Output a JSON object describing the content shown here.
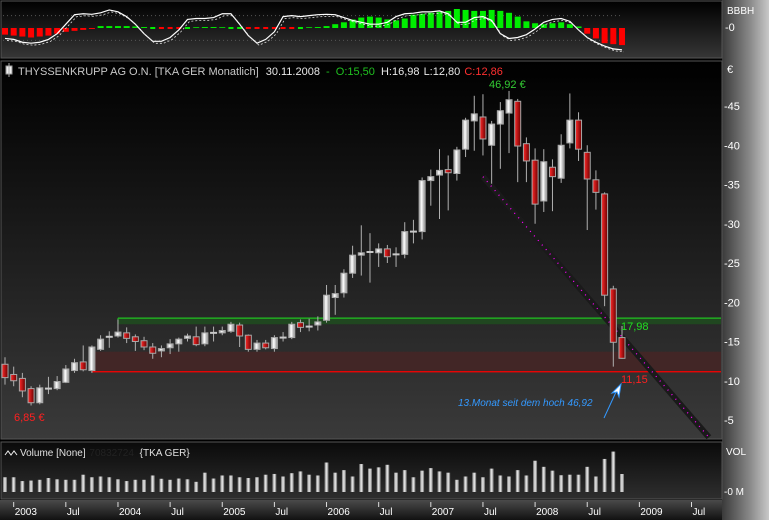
{
  "header": {
    "icon": "candlestick-icon",
    "title": "THYSSENKRUPP AG O.N. [TKA GER  Monatlich]",
    "date": "30.11.2008",
    "sep": "-",
    "open": "O:15,50",
    "high": "H:16,98",
    "low": "L:12,80",
    "close": "C:12,86"
  },
  "indicator": {
    "label": "BBBH",
    "zero_label": "-0"
  },
  "volume_panel": {
    "icon": "line-chart-icon",
    "title": "Volume [None]",
    "value": "70832724",
    "symbol": "{TKA GER}",
    "axis_label": "VOL",
    "zero_label": "-0 M"
  },
  "colors": {
    "up": "#e0e0e0",
    "down": "#d00000",
    "support": "#20c020",
    "resistance": "#ff0000",
    "trend": "#ff00ff",
    "annotation": "#3399ff"
  },
  "chart_data": [
    {
      "type": "candlestick",
      "title": "THYSSENKRUPP AG O.N. [TKA GER  Monatlich]",
      "ylabel": "€",
      "ylim": [
        2,
        49
      ],
      "yticks": [
        5,
        10,
        15,
        20,
        25,
        30,
        35,
        40,
        45
      ],
      "ytick_labels": [
        "-5",
        "-10",
        "-15",
        "-20",
        "-25",
        "-30",
        "-35",
        "-40",
        "-45"
      ],
      "xticks": [
        {
          "month": "2003-01",
          "label": "2003"
        },
        {
          "month": "2003-07",
          "label": "Jul"
        },
        {
          "month": "2004-01",
          "label": "2004"
        },
        {
          "month": "2004-07",
          "label": "Jul"
        },
        {
          "month": "2005-01",
          "label": "2005"
        },
        {
          "month": "2005-07",
          "label": "Jul"
        },
        {
          "month": "2006-01",
          "label": "2006"
        },
        {
          "month": "2006-07",
          "label": "Jul"
        },
        {
          "month": "2007-01",
          "label": "2007"
        },
        {
          "month": "2007-07",
          "label": "Jul"
        },
        {
          "month": "2008-01",
          "label": "2008"
        },
        {
          "month": "2008-07",
          "label": "Jul"
        },
        {
          "month": "2009-01",
          "label": "2009"
        },
        {
          "month": "2009-07",
          "label": "Jul"
        }
      ],
      "fields": [
        "month",
        "open",
        "high",
        "low",
        "close"
      ],
      "candles": [
        [
          "2002-12",
          12.1,
          13.0,
          9.5,
          10.4
        ],
        [
          "2003-01",
          10.8,
          11.8,
          9.3,
          10.0
        ],
        [
          "2003-02",
          10.3,
          11.0,
          7.9,
          8.7
        ],
        [
          "2003-03",
          9.0,
          9.3,
          6.85,
          7.2
        ],
        [
          "2003-04",
          7.2,
          9.5,
          7.0,
          9.1
        ],
        [
          "2003-05",
          9.0,
          10.5,
          8.3,
          9.0
        ],
        [
          "2003-06",
          9.0,
          10.6,
          8.8,
          9.9
        ],
        [
          "2003-07",
          9.8,
          12.0,
          9.7,
          11.5
        ],
        [
          "2003-08",
          11.3,
          12.8,
          11.0,
          12.3
        ],
        [
          "2003-09",
          12.4,
          14.5,
          11.2,
          11.4
        ],
        [
          "2003-10",
          11.3,
          14.5,
          11.0,
          14.3
        ],
        [
          "2003-11",
          14.0,
          15.8,
          13.8,
          15.3
        ],
        [
          "2003-12",
          15.5,
          16.3,
          14.2,
          15.6
        ],
        [
          "2004-01",
          15.7,
          17.8,
          15.5,
          16.2
        ],
        [
          "2004-02",
          16.1,
          16.8,
          14.8,
          15.4
        ],
        [
          "2004-03",
          15.6,
          15.9,
          13.8,
          15.0
        ],
        [
          "2004-04",
          15.1,
          15.6,
          13.9,
          14.3
        ],
        [
          "2004-05",
          14.3,
          14.8,
          12.8,
          13.5
        ],
        [
          "2004-06",
          13.8,
          14.5,
          13.0,
          14.1
        ],
        [
          "2004-07",
          14.2,
          15.3,
          13.4,
          14.7
        ],
        [
          "2004-08",
          14.7,
          15.5,
          13.7,
          15.3
        ],
        [
          "2004-09",
          15.4,
          16.0,
          15.0,
          15.7
        ],
        [
          "2004-10",
          15.6,
          16.9,
          14.4,
          14.6
        ],
        [
          "2004-11",
          14.7,
          16.9,
          14.4,
          16.1
        ],
        [
          "2004-12",
          16.0,
          16.9,
          15.0,
          16.1
        ],
        [
          "2005-01",
          16.1,
          16.9,
          15.8,
          16.4
        ],
        [
          "2005-02",
          16.3,
          17.5,
          16.1,
          17.2
        ],
        [
          "2005-03",
          17.1,
          17.4,
          14.3,
          15.7
        ],
        [
          "2005-04",
          15.8,
          15.9,
          13.7,
          14.0
        ],
        [
          "2005-05",
          14.0,
          15.2,
          13.7,
          14.8
        ],
        [
          "2005-06",
          14.8,
          15.2,
          14.0,
          14.2
        ],
        [
          "2005-07",
          14.1,
          15.8,
          13.7,
          15.5
        ],
        [
          "2005-08",
          15.5,
          16.2,
          15.0,
          15.5
        ],
        [
          "2005-09",
          15.5,
          17.5,
          15.3,
          17.2
        ],
        [
          "2005-10",
          17.4,
          17.8,
          16.2,
          16.8
        ],
        [
          "2005-11",
          16.9,
          17.9,
          16.3,
          16.9
        ],
        [
          "2005-12",
          17.1,
          18.2,
          16.4,
          17.5
        ],
        [
          "2006-01",
          17.7,
          22.2,
          17.4,
          20.9
        ],
        [
          "2006-02",
          20.6,
          22.2,
          18.4,
          21.1
        ],
        [
          "2006-03",
          21.2,
          24.2,
          20.6,
          23.7
        ],
        [
          "2006-04",
          23.7,
          27.2,
          23.1,
          26.0
        ],
        [
          "2006-05",
          26.0,
          29.8,
          23.4,
          26.3
        ],
        [
          "2006-06",
          26.4,
          28.8,
          22.5,
          26.4
        ],
        [
          "2006-07",
          26.3,
          27.5,
          24.5,
          26.8
        ],
        [
          "2006-08",
          26.8,
          27.3,
          25.0,
          25.8
        ],
        [
          "2006-09",
          26.1,
          27.0,
          24.5,
          26.1
        ],
        [
          "2006-10",
          26.1,
          30.2,
          25.6,
          29.0
        ],
        [
          "2006-11",
          29.0,
          30.5,
          27.5,
          29.0
        ],
        [
          "2006-12",
          29.0,
          35.9,
          28.0,
          35.5
        ],
        [
          "2007-01",
          35.5,
          36.9,
          32.3,
          36.0
        ],
        [
          "2007-02",
          36.2,
          39.5,
          30.6,
          36.8
        ],
        [
          "2007-03",
          36.9,
          38.7,
          31.7,
          36.5
        ],
        [
          "2007-04",
          36.4,
          39.8,
          35.5,
          39.4
        ],
        [
          "2007-05",
          39.5,
          43.5,
          38.5,
          43.2
        ],
        [
          "2007-06",
          43.1,
          46.3,
          39.3,
          44.0
        ],
        [
          "2007-07",
          43.6,
          46.5,
          38.7,
          40.8
        ],
        [
          "2007-08",
          40.0,
          43.1,
          35.1,
          42.7
        ],
        [
          "2007-09",
          42.7,
          45.5,
          37.0,
          44.4
        ],
        [
          "2007-10",
          44.1,
          46.92,
          39.0,
          45.8
        ],
        [
          "2007-11",
          45.6,
          45.9,
          35.3,
          39.9
        ],
        [
          "2007-12",
          40.2,
          41.0,
          35.3,
          38.0
        ],
        [
          "2008-01",
          38.1,
          39.6,
          30.0,
          32.5
        ],
        [
          "2008-02",
          32.9,
          39.5,
          31.5,
          37.9
        ],
        [
          "2008-03",
          37.2,
          38.2,
          31.6,
          36.0
        ],
        [
          "2008-04",
          35.8,
          41.4,
          35.2,
          40.0
        ],
        [
          "2008-05",
          40.3,
          46.6,
          39.6,
          43.2
        ],
        [
          "2008-06",
          43.2,
          44.2,
          38.0,
          39.5
        ],
        [
          "2008-07",
          39.1,
          40.0,
          29.2,
          35.7
        ],
        [
          "2008-08",
          35.6,
          36.8,
          31.8,
          34.0
        ],
        [
          "2008-09",
          33.8,
          34.0,
          19.5,
          20.9
        ],
        [
          "2008-10",
          21.7,
          22.1,
          11.8,
          14.9
        ],
        [
          "2008-11",
          15.5,
          16.98,
          12.8,
          12.86
        ]
      ],
      "levels": [
        {
          "name": "support",
          "value": 17.98,
          "label": "17,98",
          "from": "2004-01",
          "band_to": 17.2,
          "color": "#20c020"
        },
        {
          "name": "resistance",
          "value": 11.15,
          "label": "11,15",
          "from": "2003-10",
          "band_to": 13.7,
          "color": "#ff0000"
        }
      ],
      "trendline": {
        "from": {
          "month": "2007-07",
          "value": 36.0
        },
        "to": {
          "month": "2009-09",
          "value": 2.8
        },
        "color": "#ff00ff"
      },
      "annotations": [
        {
          "text": "46,92 €",
          "month": "2007-10",
          "value": 46.92,
          "color": "#33cc33"
        },
        {
          "text": "6,85 €",
          "month": "2003-03",
          "value": 6.85,
          "color": "#ff2020"
        },
        {
          "text": "13.Monat  seit dem hoch 46,92",
          "color": "#3399ff"
        }
      ]
    },
    {
      "type": "bar",
      "title": "BBBH",
      "description_series": "histogram plus oscillator line, by month",
      "histogram": [
        -0.35,
        -0.4,
        -0.45,
        -0.5,
        -0.45,
        -0.4,
        -0.3,
        -0.2,
        -0.15,
        -0.1,
        -0.05,
        0.1,
        0.1,
        0.1,
        0.1,
        0.08,
        0.05,
        0.03,
        -0.02,
        -0.02,
        -0.02,
        0.03,
        0.04,
        0.05,
        0.05,
        0.04,
        0.03,
        0.03,
        -0.02,
        -0.02,
        -0.02,
        -0.02,
        -0.02,
        -0.02,
        0.03,
        0.04,
        0.05,
        0.1,
        0.2,
        0.3,
        0.45,
        0.55,
        0.6,
        0.55,
        0.45,
        0.4,
        0.5,
        0.7,
        0.75,
        0.8,
        0.85,
        0.9,
        1.0,
        0.95,
        0.9,
        0.9,
        0.95,
        0.9,
        0.8,
        0.6,
        0.35,
        0.25,
        0.2,
        0.25,
        0.3,
        0.2,
        0.08,
        -0.3,
        -0.55,
        -0.8,
        -0.85,
        -0.9
      ],
      "line": [
        -0.55,
        -0.6,
        -0.75,
        -0.8,
        -0.75,
        -0.6,
        -0.3,
        0.2,
        0.7,
        0.75,
        0.72,
        0.8,
        0.95,
        0.85,
        0.6,
        0.2,
        -0.3,
        -0.7,
        -0.7,
        -0.5,
        -0.1,
        0.45,
        0.5,
        0.5,
        0.55,
        0.75,
        0.75,
        0.2,
        -0.4,
        -0.8,
        -0.6,
        -0.2,
        0.6,
        0.65,
        0.6,
        0.65,
        0.7,
        0.72,
        0.7,
        0.55,
        0.4,
        0.3,
        0.2,
        0.2,
        0.3,
        0.6,
        0.75,
        0.78,
        0.85,
        0.85,
        0.9,
        0.75,
        0.3,
        0.3,
        0.55,
        0.6,
        0.4,
        -0.3,
        -0.55,
        -0.5,
        -0.35,
        -0.05,
        0.3,
        0.45,
        0.5,
        0.35,
        -0.1,
        -0.5,
        -0.75,
        -0.95,
        -1.1,
        -1.15
      ]
    },
    {
      "type": "bar",
      "title": "Volume [None]",
      "unit": "M",
      "values": [
        58,
        58,
        43,
        45,
        48,
        55,
        50,
        48,
        48,
        68,
        58,
        61,
        58,
        50,
        43,
        48,
        48,
        65,
        52,
        48,
        53,
        50,
        40,
        76,
        53,
        65,
        65,
        58,
        55,
        58,
        68,
        71,
        61,
        74,
        81,
        68,
        65,
        116,
        76,
        86,
        61,
        110,
        92,
        97,
        107,
        76,
        86,
        58,
        84,
        94,
        81,
        76,
        48,
        61,
        76,
        58,
        92,
        65,
        61,
        86,
        65,
        123,
        99,
        84,
        66,
        68,
        68,
        99,
        61,
        130,
        159,
        70.8
      ]
    }
  ]
}
